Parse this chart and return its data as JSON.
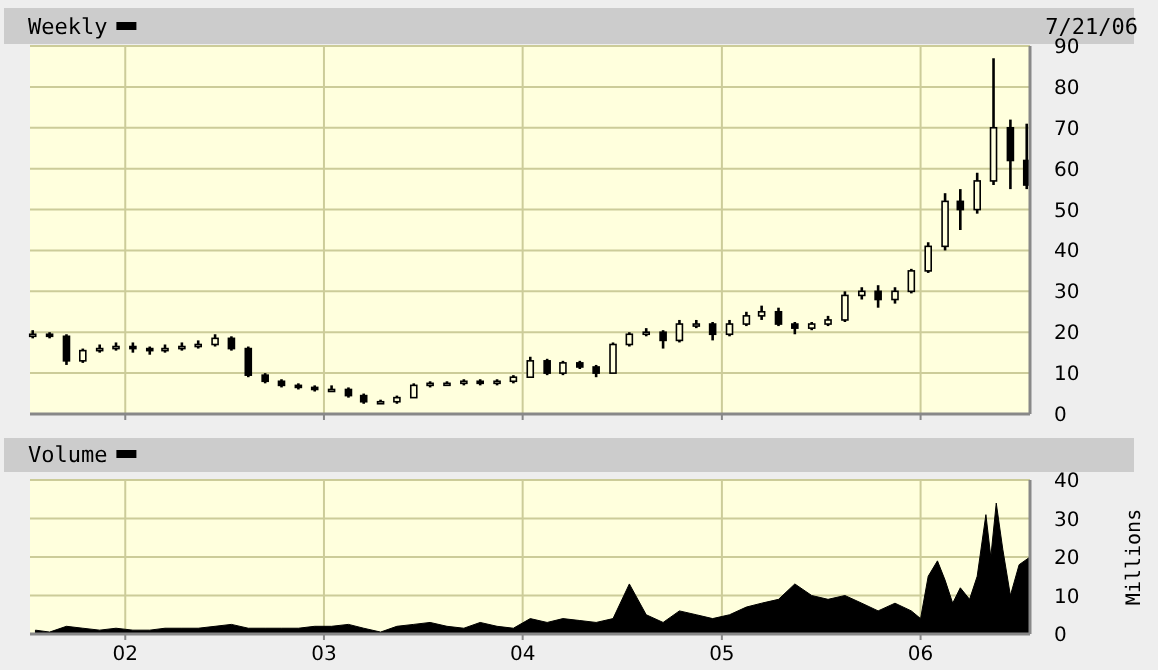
{
  "chart_data": [
    {
      "type": "candlestick",
      "title": "Weekly",
      "annotations": [
        "7/21/06"
      ],
      "x": [
        "2001-07-15",
        "2001-08-15",
        "2001-09-15",
        "2001-10-15",
        "2001-11-15",
        "2001-12-15",
        "2002-01-15",
        "2002-02-15",
        "2002-03-15",
        "2002-04-15",
        "2002-05-15",
        "2002-06-15",
        "2002-07-15",
        "2002-08-15",
        "2002-09-15",
        "2002-10-15",
        "2002-11-15",
        "2002-12-15",
        "2003-01-15",
        "2003-02-15",
        "2003-03-15",
        "2003-04-15",
        "2003-05-15",
        "2003-06-15",
        "2003-07-15",
        "2003-08-15",
        "2003-09-15",
        "2003-10-15",
        "2003-11-15",
        "2003-12-15",
        "2004-01-15",
        "2004-02-15",
        "2004-03-15",
        "2004-04-15",
        "2004-05-15",
        "2004-06-15",
        "2004-07-15",
        "2004-08-15",
        "2004-09-15",
        "2004-10-15",
        "2004-11-15",
        "2004-12-15",
        "2005-01-15",
        "2005-02-15",
        "2005-03-15",
        "2005-04-15",
        "2005-05-15",
        "2005-06-15",
        "2005-07-15",
        "2005-08-15",
        "2005-09-15",
        "2005-10-15",
        "2005-11-15",
        "2005-12-15",
        "2006-01-15",
        "2006-02-15",
        "2006-03-15",
        "2006-04-15",
        "2006-05-15",
        "2006-06-15",
        "2006-07-15"
      ],
      "ohlc": [
        [
          19,
          20.5,
          18.5,
          19.5
        ],
        [
          19.5,
          20,
          18.5,
          19
        ],
        [
          19,
          19.5,
          12,
          13
        ],
        [
          13,
          16,
          12.5,
          15.5
        ],
        [
          15.5,
          17,
          15,
          16
        ],
        [
          16,
          17.5,
          15.5,
          16.5
        ],
        [
          16.5,
          17.5,
          15,
          16
        ],
        [
          16,
          16.5,
          14.5,
          15.5
        ],
        [
          15.5,
          17,
          15,
          16
        ],
        [
          16,
          17.5,
          15.5,
          16.5
        ],
        [
          16.5,
          18,
          16,
          17
        ],
        [
          17,
          19.5,
          16.5,
          18.5
        ],
        [
          18.5,
          19,
          15.5,
          16
        ],
        [
          16,
          16.5,
          9,
          9.5
        ],
        [
          9.5,
          10,
          7.5,
          8
        ],
        [
          8,
          8.5,
          6.5,
          7
        ],
        [
          7,
          7.5,
          6,
          6.5
        ],
        [
          6.5,
          7,
          5.5,
          6
        ],
        [
          6,
          7,
          5.5,
          6
        ],
        [
          6,
          6.5,
          4,
          4.5
        ],
        [
          4.5,
          5,
          2.5,
          3
        ],
        [
          3,
          3.5,
          2.5,
          3
        ],
        [
          3,
          4.5,
          2.5,
          4
        ],
        [
          4,
          7.5,
          4,
          7
        ],
        [
          7,
          8,
          6.5,
          7.5
        ],
        [
          7.5,
          8,
          7,
          7.5
        ],
        [
          7.5,
          8.5,
          7,
          8
        ],
        [
          8,
          8.5,
          7,
          7.5
        ],
        [
          7.5,
          8.5,
          7,
          8
        ],
        [
          8,
          9.5,
          7.5,
          9
        ],
        [
          9,
          14,
          9,
          13
        ],
        [
          13,
          13.5,
          9.5,
          10
        ],
        [
          10,
          13,
          9.5,
          12.5
        ],
        [
          12.5,
          13,
          11,
          11.5
        ],
        [
          11.5,
          12,
          9,
          10
        ],
        [
          10,
          17.5,
          10,
          17
        ],
        [
          17,
          20,
          16.5,
          19.5
        ],
        [
          19.5,
          21,
          19,
          20
        ],
        [
          20,
          20.5,
          16,
          18
        ],
        [
          18,
          23,
          17.5,
          22
        ],
        [
          22,
          23,
          21,
          22
        ],
        [
          22,
          22.5,
          18,
          19.5
        ],
        [
          19.5,
          23,
          19,
          22
        ],
        [
          22,
          25,
          21.5,
          24
        ],
        [
          24,
          26.5,
          23,
          25
        ],
        [
          25,
          26,
          21.5,
          22
        ],
        [
          22,
          22.5,
          19.5,
          21
        ],
        [
          21,
          22.5,
          20.5,
          22
        ],
        [
          22,
          24,
          21.5,
          23
        ],
        [
          23,
          30,
          22.5,
          29
        ],
        [
          29,
          31,
          28,
          30
        ],
        [
          30,
          31.5,
          26,
          28
        ],
        [
          28,
          31,
          27,
          30
        ],
        [
          30,
          35.5,
          29.5,
          35
        ],
        [
          35,
          42,
          34.5,
          41
        ],
        [
          41,
          54,
          40,
          52
        ],
        [
          52,
          55,
          45,
          50
        ],
        [
          50,
          59,
          49,
          57
        ],
        [
          57,
          87,
          56,
          70
        ],
        [
          70,
          72,
          55,
          62
        ],
        [
          62,
          71,
          55,
          56
        ]
      ],
      "xlim": [
        "2001-07-10",
        "2006-07-21"
      ],
      "xticks": [
        {
          "value": "2002-01-01",
          "label": null
        },
        {
          "value": "2003-01-01",
          "label": null
        },
        {
          "value": "2004-01-01",
          "label": null
        },
        {
          "value": "2005-01-01",
          "label": null
        },
        {
          "value": "2006-01-01",
          "label": null
        }
      ],
      "ylim": [
        0,
        90
      ],
      "yticks": [
        0,
        10,
        20,
        30,
        40,
        50,
        60,
        70,
        80,
        90
      ],
      "grid": true,
      "tick_labels": "y"
    },
    {
      "type": "area",
      "title": "Volume",
      "ylabel": "Millions",
      "x": [
        "2001-07-20",
        "2001-08-15",
        "2001-09-15",
        "2001-10-15",
        "2001-11-15",
        "2001-12-15",
        "2002-01-15",
        "2002-02-15",
        "2002-03-15",
        "2002-04-15",
        "2002-05-15",
        "2002-06-15",
        "2002-07-15",
        "2002-08-15",
        "2002-09-15",
        "2002-10-15",
        "2002-11-15",
        "2002-12-15",
        "2003-01-15",
        "2003-02-15",
        "2003-03-15",
        "2003-04-15",
        "2003-05-15",
        "2003-06-15",
        "2003-07-15",
        "2003-08-15",
        "2003-09-15",
        "2003-10-15",
        "2003-11-15",
        "2003-12-15",
        "2004-01-15",
        "2004-02-15",
        "2004-03-15",
        "2004-04-15",
        "2004-05-15",
        "2004-06-15",
        "2004-07-15",
        "2004-08-15",
        "2004-09-15",
        "2004-10-15",
        "2004-11-15",
        "2004-12-15",
        "2005-01-15",
        "2005-02-15",
        "2005-03-15",
        "2005-04-15",
        "2005-05-15",
        "2005-06-15",
        "2005-07-15",
        "2005-08-15",
        "2005-09-15",
        "2005-10-15",
        "2005-11-15",
        "2005-12-15",
        "2006-01-01",
        "2006-01-15",
        "2006-02-01",
        "2006-02-15",
        "2006-03-01",
        "2006-03-15",
        "2006-04-01",
        "2006-04-15",
        "2006-05-01",
        "2006-05-10",
        "2006-05-20",
        "2006-06-01",
        "2006-06-15",
        "2006-07-01",
        "2006-07-21"
      ],
      "series": [
        {
          "color": "#000000",
          "values": [
            1,
            0.5,
            2,
            1.5,
            1,
            1.5,
            1,
            1,
            1.5,
            1.5,
            1.5,
            2,
            2.5,
            1.5,
            1.5,
            1.5,
            1.5,
            2,
            2,
            2.5,
            1.5,
            0.5,
            2,
            2.5,
            3,
            2,
            1.5,
            3,
            2,
            1.5,
            4,
            3,
            4,
            3.5,
            3,
            4,
            13,
            5,
            3,
            6,
            5,
            4,
            5,
            7,
            8,
            9,
            13,
            10,
            9,
            10,
            8,
            6,
            8,
            6,
            4,
            15,
            19,
            14,
            8,
            12,
            9,
            15,
            31,
            20,
            34,
            22,
            10,
            18,
            20
          ]
        }
      ],
      "xlim": [
        "2001-07-10",
        "2006-07-21"
      ],
      "xticks": [
        {
          "value": "2002-01-01",
          "label": "02"
        },
        {
          "value": "2003-01-01",
          "label": "03"
        },
        {
          "value": "2004-01-01",
          "label": "04"
        },
        {
          "value": "2005-01-01",
          "label": "05"
        },
        {
          "value": "2006-01-01",
          "label": "06"
        }
      ],
      "ylim": [
        0,
        40
      ],
      "yticks": [
        0,
        10,
        20,
        30,
        40
      ],
      "grid": true
    }
  ]
}
